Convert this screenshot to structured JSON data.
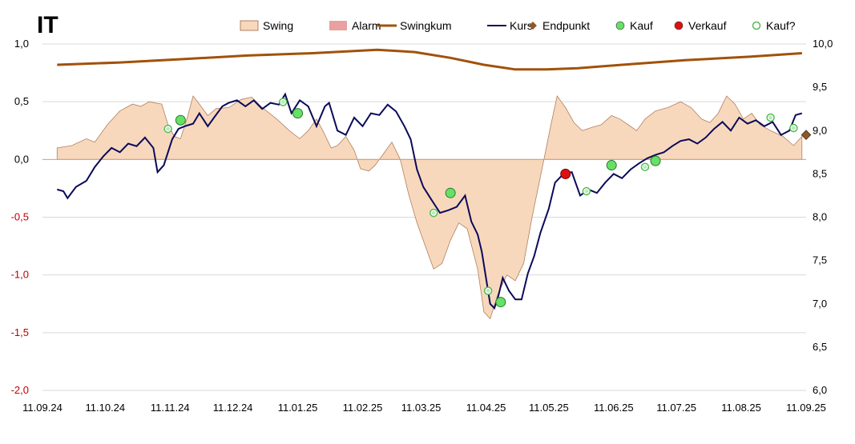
{
  "chart_data": {
    "type": "line",
    "title": "IT",
    "legend_position": "top",
    "grid": true,
    "y_left": {
      "range": [
        -2.0,
        1.0
      ],
      "ticks": [
        1.0,
        0.5,
        0.0,
        -0.5,
        -1.0,
        -1.5,
        -2.0
      ],
      "tick_labels": [
        "1,0",
        "0,5",
        "0,0",
        "-0,5",
        "-1,0",
        "-1,5",
        "-2,0"
      ]
    },
    "y_right": {
      "range": [
        6.0,
        10.0
      ],
      "ticks": [
        10.0,
        9.5,
        9.0,
        8.5,
        8.0,
        7.5,
        7.0,
        6.5,
        6.0
      ],
      "tick_labels": [
        "10,0",
        "9,5",
        "9,0",
        "8,5",
        "8,0",
        "7,5",
        "7,0",
        "6,5",
        "6,0"
      ]
    },
    "x_axis": {
      "range": [
        "2024-09-11",
        "2025-09-11"
      ],
      "ticks": [
        "2024-09-11",
        "2024-10-11",
        "2024-11-11",
        "2024-12-11",
        "2025-01-11",
        "2025-02-11",
        "2025-03-11",
        "2025-04-11",
        "2025-05-11",
        "2025-06-11",
        "2025-07-11",
        "2025-08-11",
        "2025-09-11"
      ],
      "tick_labels": [
        "11.09.24",
        "11.10.24",
        "11.11.24",
        "11.12.24",
        "11.01.25",
        "11.02.25",
        "11.03.25",
        "11.04.25",
        "11.05.25",
        "11.06.25",
        "11.07.25",
        "11.08.25",
        "11.09.25"
      ]
    },
    "legend": [
      {
        "name": "Swing",
        "type": "area",
        "color": "#f8d8bc",
        "stroke": "#b08060"
      },
      {
        "name": "Alarm",
        "type": "area",
        "color": "#e8a0a0"
      },
      {
        "name": "Swingkum",
        "type": "line",
        "color": "#a0520a"
      },
      {
        "name": "Kurs",
        "type": "line",
        "color": "#0a0a5a"
      },
      {
        "name": "Endpunkt",
        "type": "marker",
        "color": "#8b5a2b"
      },
      {
        "name": "Kauf",
        "type": "marker",
        "color": "#66e066"
      },
      {
        "name": "Verkauf",
        "type": "marker",
        "color": "#dd1111"
      },
      {
        "name": "Kauf?",
        "type": "marker-open",
        "color": "#55bb55"
      }
    ],
    "series": [
      {
        "name": "Swing",
        "axis": "left",
        "points": [
          [
            "2024-09-18",
            0.0
          ],
          [
            "2024-09-18",
            0.1
          ],
          [
            "2024-09-25",
            0.12
          ],
          [
            "2024-10-02",
            0.18
          ],
          [
            "2024-10-06",
            0.15
          ],
          [
            "2024-10-12",
            0.3
          ],
          [
            "2024-10-18",
            0.42
          ],
          [
            "2024-10-24",
            0.48
          ],
          [
            "2024-10-28",
            0.46
          ],
          [
            "2024-11-01",
            0.5
          ],
          [
            "2024-11-07",
            0.48
          ],
          [
            "2024-11-10",
            0.3
          ],
          [
            "2024-11-13",
            0.2
          ],
          [
            "2024-11-16",
            0.18
          ],
          [
            "2024-11-19",
            0.35
          ],
          [
            "2024-11-22",
            0.55
          ],
          [
            "2024-11-25",
            0.48
          ],
          [
            "2024-11-29",
            0.38
          ],
          [
            "2024-12-03",
            0.44
          ],
          [
            "2024-12-09",
            0.45
          ],
          [
            "2024-12-15",
            0.52
          ],
          [
            "2024-12-20",
            0.54
          ],
          [
            "2024-12-25",
            0.45
          ],
          [
            "2025-01-01",
            0.35
          ],
          [
            "2025-01-07",
            0.25
          ],
          [
            "2025-01-12",
            0.18
          ],
          [
            "2025-01-16",
            0.25
          ],
          [
            "2025-01-20",
            0.35
          ],
          [
            "2025-01-23",
            0.25
          ],
          [
            "2025-01-27",
            0.1
          ],
          [
            "2025-01-30",
            0.12
          ],
          [
            "2025-02-03",
            0.2
          ],
          [
            "2025-02-07",
            0.08
          ],
          [
            "2025-02-10",
            -0.08
          ],
          [
            "2025-02-14",
            -0.1
          ],
          [
            "2025-02-17",
            -0.05
          ],
          [
            "2025-02-21",
            0.05
          ],
          [
            "2025-02-25",
            0.15
          ],
          [
            "2025-03-01",
            0.0
          ],
          [
            "2025-03-05",
            -0.3
          ],
          [
            "2025-03-09",
            -0.55
          ],
          [
            "2025-03-13",
            -0.75
          ],
          [
            "2025-03-17",
            -0.95
          ],
          [
            "2025-03-21",
            -0.9
          ],
          [
            "2025-03-25",
            -0.7
          ],
          [
            "2025-03-29",
            -0.55
          ],
          [
            "2025-04-02",
            -0.6
          ],
          [
            "2025-04-07",
            -0.95
          ],
          [
            "2025-04-10",
            -1.32
          ],
          [
            "2025-04-13",
            -1.38
          ],
          [
            "2025-04-17",
            -1.15
          ],
          [
            "2025-04-21",
            -1.0
          ],
          [
            "2025-04-25",
            -1.05
          ],
          [
            "2025-04-29",
            -0.9
          ],
          [
            "2025-05-03",
            -0.5
          ],
          [
            "2025-05-07",
            -0.15
          ],
          [
            "2025-05-12",
            0.3
          ],
          [
            "2025-05-15",
            0.55
          ],
          [
            "2025-05-19",
            0.45
          ],
          [
            "2025-05-23",
            0.32
          ],
          [
            "2025-05-27",
            0.25
          ],
          [
            "2025-06-01",
            0.28
          ],
          [
            "2025-06-05",
            0.3
          ],
          [
            "2025-06-10",
            0.38
          ],
          [
            "2025-06-14",
            0.35
          ],
          [
            "2025-06-18",
            0.3
          ],
          [
            "2025-06-22",
            0.25
          ],
          [
            "2025-06-26",
            0.35
          ],
          [
            "2025-07-01",
            0.42
          ],
          [
            "2025-07-07",
            0.45
          ],
          [
            "2025-07-13",
            0.5
          ],
          [
            "2025-07-18",
            0.45
          ],
          [
            "2025-07-23",
            0.35
          ],
          [
            "2025-07-27",
            0.32
          ],
          [
            "2025-07-31",
            0.4
          ],
          [
            "2025-08-04",
            0.55
          ],
          [
            "2025-08-08",
            0.48
          ],
          [
            "2025-08-12",
            0.35
          ],
          [
            "2025-08-16",
            0.4
          ],
          [
            "2025-08-20",
            0.3
          ],
          [
            "2025-08-25",
            0.25
          ],
          [
            "2025-08-31",
            0.2
          ],
          [
            "2025-09-05",
            0.12
          ],
          [
            "2025-09-09",
            0.2
          ],
          [
            "2025-09-09",
            0.0
          ]
        ]
      },
      {
        "name": "Swingkum",
        "axis": "left",
        "points": [
          [
            "2024-09-18",
            0.82
          ],
          [
            "2024-10-18",
            0.84
          ],
          [
            "2024-11-18",
            0.87
          ],
          [
            "2024-12-18",
            0.9
          ],
          [
            "2025-01-18",
            0.92
          ],
          [
            "2025-02-18",
            0.95
          ],
          [
            "2025-03-08",
            0.93
          ],
          [
            "2025-03-25",
            0.88
          ],
          [
            "2025-04-10",
            0.82
          ],
          [
            "2025-04-25",
            0.78
          ],
          [
            "2025-05-10",
            0.78
          ],
          [
            "2025-05-25",
            0.79
          ],
          [
            "2025-06-15",
            0.82
          ],
          [
            "2025-07-15",
            0.86
          ],
          [
            "2025-08-15",
            0.89
          ],
          [
            "2025-09-09",
            0.92
          ]
        ]
      },
      {
        "name": "Kurs",
        "axis": "right",
        "points": [
          [
            "2024-09-18",
            8.32
          ],
          [
            "2024-09-21",
            8.3
          ],
          [
            "2024-09-23",
            8.22
          ],
          [
            "2024-09-27",
            8.35
          ],
          [
            "2024-10-02",
            8.42
          ],
          [
            "2024-10-06",
            8.58
          ],
          [
            "2024-10-10",
            8.7
          ],
          [
            "2024-10-14",
            8.8
          ],
          [
            "2024-10-18",
            8.75
          ],
          [
            "2024-10-22",
            8.85
          ],
          [
            "2024-10-26",
            8.82
          ],
          [
            "2024-10-30",
            8.92
          ],
          [
            "2024-11-03",
            8.8
          ],
          [
            "2024-11-05",
            8.52
          ],
          [
            "2024-11-08",
            8.6
          ],
          [
            "2024-11-12",
            8.9
          ],
          [
            "2024-11-15",
            9.02
          ],
          [
            "2024-11-18",
            9.05
          ],
          [
            "2024-11-22",
            9.08
          ],
          [
            "2024-11-25",
            9.2
          ],
          [
            "2024-11-29",
            9.05
          ],
          [
            "2024-12-02",
            9.15
          ],
          [
            "2024-12-06",
            9.28
          ],
          [
            "2024-12-09",
            9.32
          ],
          [
            "2024-12-13",
            9.35
          ],
          [
            "2024-12-17",
            9.28
          ],
          [
            "2024-12-21",
            9.35
          ],
          [
            "2024-12-25",
            9.25
          ],
          [
            "2024-12-29",
            9.32
          ],
          [
            "2025-01-02",
            9.3
          ],
          [
            "2025-01-05",
            9.42
          ],
          [
            "2025-01-08",
            9.2
          ],
          [
            "2025-01-12",
            9.35
          ],
          [
            "2025-01-16",
            9.28
          ],
          [
            "2025-01-20",
            9.05
          ],
          [
            "2025-01-24",
            9.28
          ],
          [
            "2025-01-26",
            9.32
          ],
          [
            "2025-01-30",
            9.0
          ],
          [
            "2025-02-03",
            8.95
          ],
          [
            "2025-02-07",
            9.15
          ],
          [
            "2025-02-11",
            9.05
          ],
          [
            "2025-02-15",
            9.2
          ],
          [
            "2025-02-19",
            9.18
          ],
          [
            "2025-02-23",
            9.3
          ],
          [
            "2025-02-27",
            9.22
          ],
          [
            "2025-03-03",
            9.05
          ],
          [
            "2025-03-06",
            8.9
          ],
          [
            "2025-03-09",
            8.55
          ],
          [
            "2025-03-12",
            8.35
          ],
          [
            "2025-03-16",
            8.2
          ],
          [
            "2025-03-20",
            8.05
          ],
          [
            "2025-03-24",
            8.08
          ],
          [
            "2025-03-28",
            8.12
          ],
          [
            "2025-04-01",
            8.25
          ],
          [
            "2025-04-04",
            7.95
          ],
          [
            "2025-04-07",
            7.8
          ],
          [
            "2025-04-09",
            7.6
          ],
          [
            "2025-04-11",
            7.3
          ],
          [
            "2025-04-13",
            7.0
          ],
          [
            "2025-04-15",
            6.95
          ],
          [
            "2025-04-17",
            7.1
          ],
          [
            "2025-04-19",
            7.3
          ],
          [
            "2025-04-22",
            7.15
          ],
          [
            "2025-04-25",
            7.05
          ],
          [
            "2025-04-28",
            7.05
          ],
          [
            "2025-05-01",
            7.35
          ],
          [
            "2025-05-04",
            7.55
          ],
          [
            "2025-05-07",
            7.82
          ],
          [
            "2025-05-11",
            8.1
          ],
          [
            "2025-05-14",
            8.4
          ],
          [
            "2025-05-18",
            8.5
          ],
          [
            "2025-05-22",
            8.52
          ],
          [
            "2025-05-26",
            8.25
          ],
          [
            "2025-05-30",
            8.32
          ],
          [
            "2025-06-03",
            8.28
          ],
          [
            "2025-06-07",
            8.4
          ],
          [
            "2025-06-11",
            8.5
          ],
          [
            "2025-06-15",
            8.45
          ],
          [
            "2025-06-19",
            8.55
          ],
          [
            "2025-06-23",
            8.62
          ],
          [
            "2025-06-27",
            8.68
          ],
          [
            "2025-07-01",
            8.72
          ],
          [
            "2025-07-05",
            8.75
          ],
          [
            "2025-07-09",
            8.82
          ],
          [
            "2025-07-13",
            8.88
          ],
          [
            "2025-07-17",
            8.9
          ],
          [
            "2025-07-21",
            8.85
          ],
          [
            "2025-07-25",
            8.92
          ],
          [
            "2025-07-29",
            9.02
          ],
          [
            "2025-08-02",
            9.1
          ],
          [
            "2025-08-06",
            9.0
          ],
          [
            "2025-08-10",
            9.15
          ],
          [
            "2025-08-14",
            9.08
          ],
          [
            "2025-08-18",
            9.12
          ],
          [
            "2025-08-22",
            9.05
          ],
          [
            "2025-08-26",
            9.1
          ],
          [
            "2025-08-30",
            8.95
          ],
          [
            "2025-09-03",
            9.0
          ],
          [
            "2025-09-06",
            9.18
          ],
          [
            "2025-09-09",
            9.2
          ]
        ]
      }
    ],
    "markers": [
      {
        "type": "Kauf",
        "date": "2024-11-16",
        "value": 9.12
      },
      {
        "type": "Kauf",
        "date": "2025-01-11",
        "value": 9.2
      },
      {
        "type": "Kauf",
        "date": "2025-03-25",
        "value": 8.28
      },
      {
        "type": "Kauf",
        "date": "2025-04-18",
        "value": 7.02
      },
      {
        "type": "Kauf",
        "date": "2025-06-10",
        "value": 8.6
      },
      {
        "type": "Kauf",
        "date": "2025-07-01",
        "value": 8.65
      },
      {
        "type": "Verkauf",
        "date": "2025-05-19",
        "value": 8.5
      },
      {
        "type": "Kauf?",
        "date": "2024-11-10",
        "value": 9.02
      },
      {
        "type": "Kauf?",
        "date": "2025-01-04",
        "value": 9.33
      },
      {
        "type": "Kauf?",
        "date": "2025-03-17",
        "value": 8.05
      },
      {
        "type": "Kauf?",
        "date": "2025-04-12",
        "value": 7.15
      },
      {
        "type": "Kauf?",
        "date": "2025-05-29",
        "value": 8.3
      },
      {
        "type": "Kauf?",
        "date": "2025-06-26",
        "value": 8.58
      },
      {
        "type": "Kauf?",
        "date": "2025-08-25",
        "value": 9.15
      },
      {
        "type": "Kauf?",
        "date": "2025-09-05",
        "value": 9.03
      },
      {
        "type": "Endpunkt",
        "date": "2025-09-11",
        "value": 8.95
      }
    ]
  }
}
